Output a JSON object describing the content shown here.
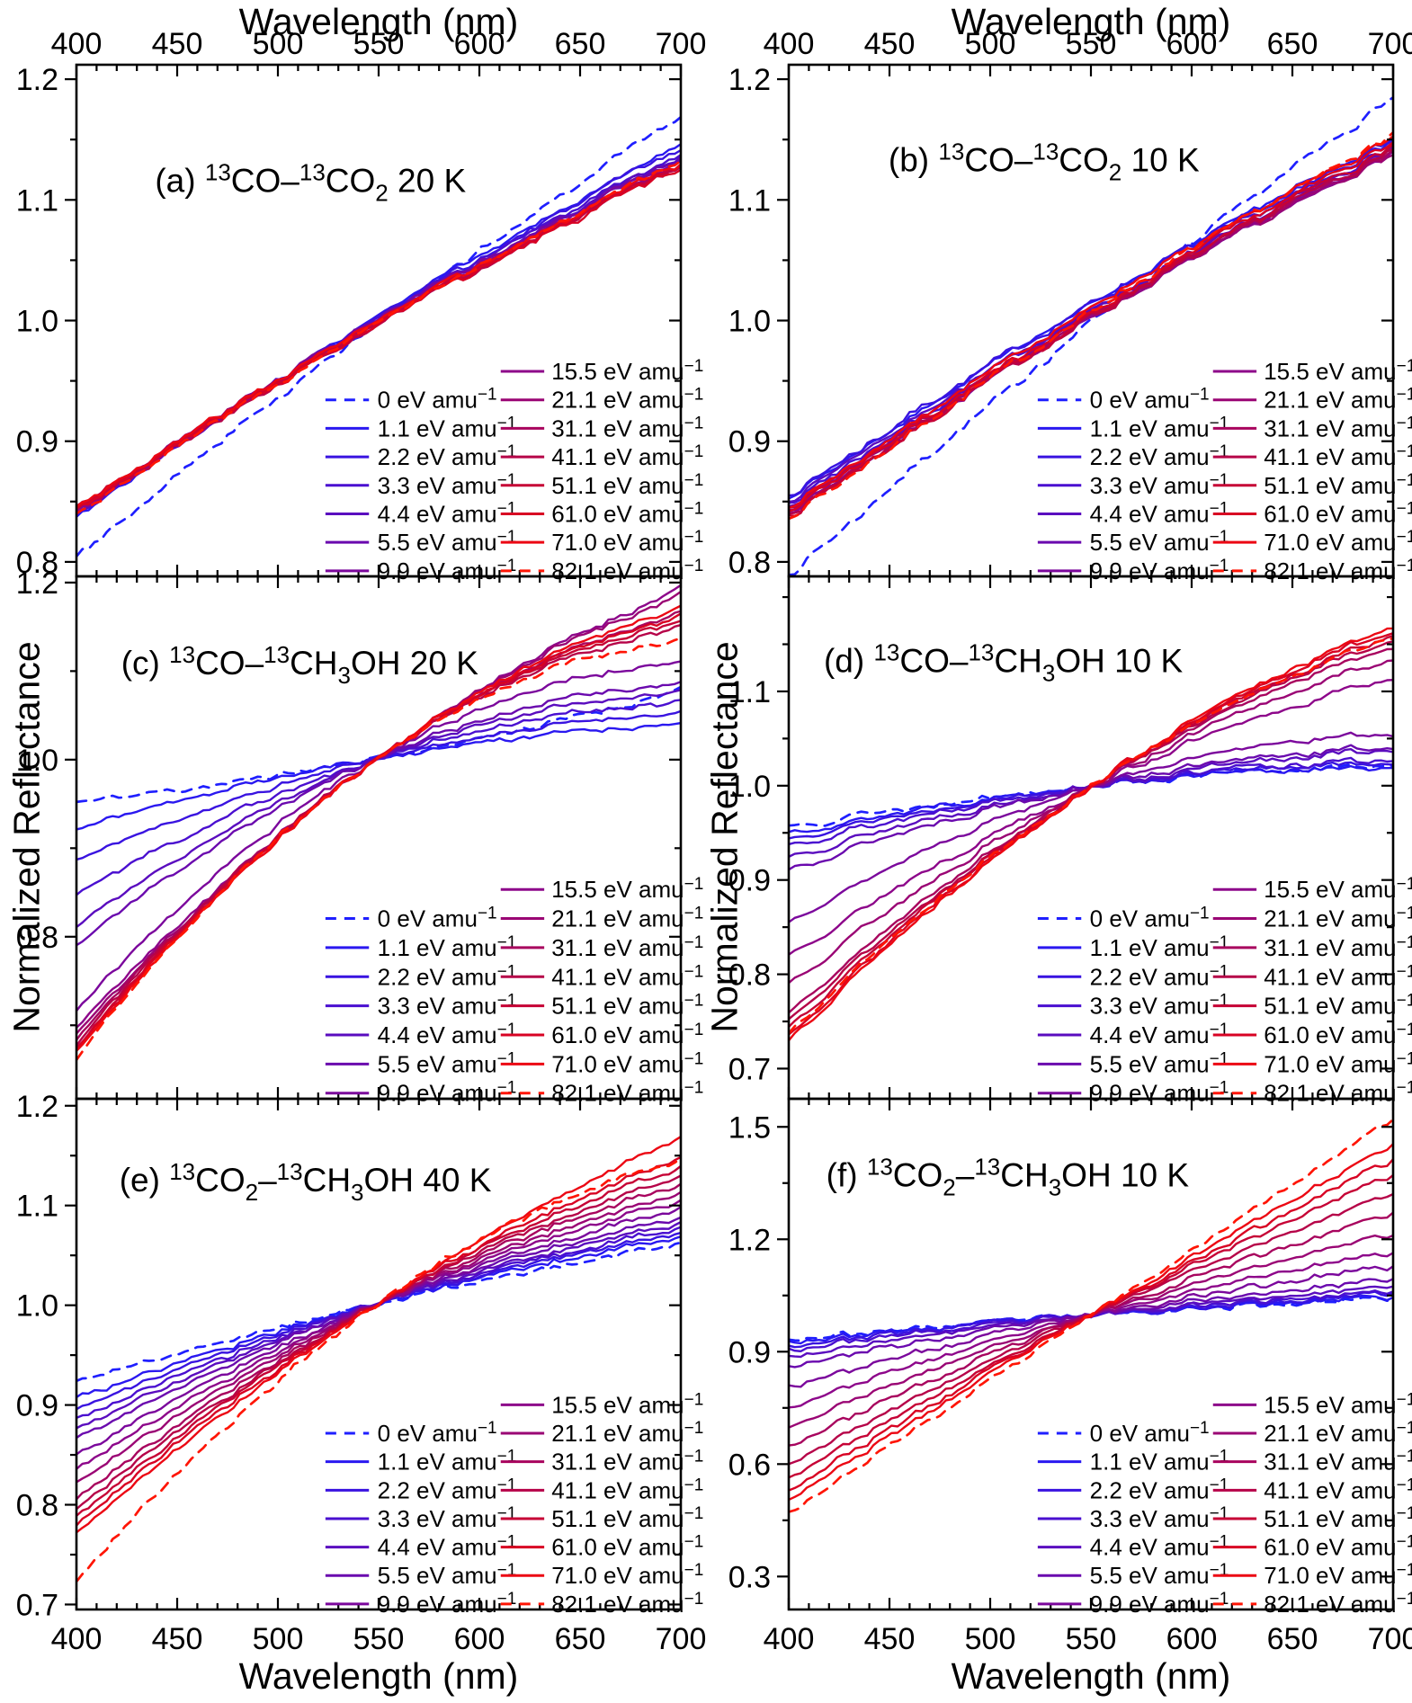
{
  "figure": {
    "x_axis_title": "Wavelength (nm)",
    "y_axis_title": "Normalized Reflectance"
  },
  "legend": {
    "unit": "eV amu",
    "exponent": "−1",
    "doses": [
      "0",
      "1.1",
      "2.2",
      "3.3",
      "4.4",
      "5.5",
      "9.9",
      "15.5",
      "21.1",
      "31.1",
      "41.1",
      "51.1",
      "61.0",
      "71.0",
      "82.1"
    ]
  },
  "chart_data": {
    "type": "line",
    "x_label": "Wavelength (nm)",
    "y_label": "Normalized Reflectance",
    "x_range": [
      400,
      700
    ],
    "x_major_ticks": [
      400,
      450,
      500,
      550,
      600,
      650,
      700
    ],
    "x_minor_step": 10,
    "series_names": [
      "0 eV amu⁻¹",
      "1.1 eV amu⁻¹",
      "2.2 eV amu⁻¹",
      "3.3 eV amu⁻¹",
      "4.4 eV amu⁻¹",
      "5.5 eV amu⁻¹",
      "9.9 eV amu⁻¹",
      "15.5 eV amu⁻¹",
      "21.1 eV amu⁻¹",
      "31.1 eV amu⁻¹",
      "41.1 eV amu⁻¹",
      "51.1 eV amu⁻¹",
      "61.0 eV amu⁻¹",
      "71.0 eV amu⁻¹",
      "82.1 eV amu⁻¹"
    ],
    "series_colors": [
      "#1f1fff",
      "#2a18f0",
      "#3913e0",
      "#4a0fd0",
      "#5a0cbf",
      "#6a09ae",
      "#7b079c",
      "#8d068a",
      "#9a0574",
      "#a8045e",
      "#b60348",
      "#c60235",
      "#d80223",
      "#ec0713",
      "#ff1505"
    ],
    "series_dashed": [
      true,
      false,
      false,
      false,
      false,
      false,
      false,
      false,
      false,
      false,
      false,
      false,
      false,
      false,
      true
    ],
    "panels": [
      {
        "key": "a",
        "title": "(a) ¹³CO–¹³CO₂ 20 K",
        "title_segments": [
          [
            "n",
            "(a) "
          ],
          [
            "sup",
            "13"
          ],
          [
            "n",
            "CO–"
          ],
          [
            "sup",
            "13"
          ],
          [
            "n",
            "CO"
          ],
          [
            "sub",
            "2"
          ],
          [
            "n",
            " 20 K"
          ]
        ],
        "ylim": [
          0.788,
          1.212
        ],
        "y_major_ticks": [
          0.8,
          0.9,
          1.0,
          1.1,
          1.2
        ],
        "y_tick_labels": [
          "0.8",
          "0.9",
          "1.0",
          "1.1",
          "1.2"
        ],
        "y_minor_step": 0.05,
        "pivot_nm": null,
        "pivot_value": null,
        "bow": 0.012,
        "noise": 0.0042,
        "reflectance_at_400nm": [
          0.805,
          0.838,
          0.84,
          0.842,
          0.839,
          0.842,
          0.845,
          0.843,
          0.845,
          0.846,
          0.842,
          0.845,
          0.844,
          0.846,
          0.84
        ],
        "reflectance_at_700nm": [
          1.168,
          1.145,
          1.142,
          1.138,
          1.136,
          1.134,
          1.133,
          1.13,
          1.129,
          1.128,
          1.127,
          1.128,
          1.126,
          1.13,
          1.132
        ]
      },
      {
        "key": "b",
        "title": "(b) ¹³CO–¹³CO₂ 10 K",
        "title_segments": [
          [
            "n",
            "(b) "
          ],
          [
            "sup",
            "13"
          ],
          [
            "n",
            "CO–"
          ],
          [
            "sup",
            "13"
          ],
          [
            "n",
            "CO"
          ],
          [
            "sub",
            "2"
          ],
          [
            "n",
            " 10 K"
          ]
        ],
        "ylim": [
          0.788,
          1.212
        ],
        "y_major_ticks": [
          0.8,
          0.9,
          1.0,
          1.1,
          1.2
        ],
        "y_tick_labels": [
          "0.8",
          "0.9",
          "1.0",
          "1.1",
          "1.2"
        ],
        "y_minor_step": 0.05,
        "pivot_nm": null,
        "pivot_value": null,
        "bow": 0.012,
        "noise": 0.0045,
        "reflectance_at_400nm": [
          0.788,
          0.852,
          0.855,
          0.848,
          0.85,
          0.845,
          0.842,
          0.84,
          0.843,
          0.845,
          0.84,
          0.838,
          0.842,
          0.845,
          0.835
        ],
        "reflectance_at_700nm": [
          1.185,
          1.152,
          1.148,
          1.145,
          1.143,
          1.142,
          1.14,
          1.139,
          1.138,
          1.14,
          1.142,
          1.145,
          1.148,
          1.152,
          1.155
        ]
      },
      {
        "key": "c",
        "title": "(c) ¹³CO–¹³CH₃OH 20 K",
        "title_segments": [
          [
            "n",
            "(c) "
          ],
          [
            "sup",
            "13"
          ],
          [
            "n",
            "CO–"
          ],
          [
            "sup",
            "13"
          ],
          [
            "n",
            "CH"
          ],
          [
            "sub",
            "3"
          ],
          [
            "n",
            "OH 20 K"
          ]
        ],
        "ylim": [
          0.617,
          1.207
        ],
        "y_major_ticks": [
          0.8,
          1.0,
          1.2
        ],
        "y_tick_labels": [
          "0.8",
          "1.0",
          "1.2"
        ],
        "y_minor_step": 0.1,
        "pivot_nm": 552,
        "pivot_value": 1.002,
        "bow": 0,
        "noise": 0.0045,
        "reflectance_at_400nm": [
          0.952,
          0.922,
          0.886,
          0.848,
          0.812,
          0.79,
          0.716,
          0.698,
          0.69,
          0.684,
          0.678,
          0.674,
          0.672,
          0.67,
          0.662
        ],
        "reflectance_at_700nm": [
          1.078,
          1.04,
          1.052,
          1.064,
          1.075,
          1.085,
          1.108,
          1.192,
          1.186,
          1.165,
          1.148,
          1.155,
          1.16,
          1.17,
          1.132
        ]
      },
      {
        "key": "d",
        "title": "(d) ¹³CO–¹³CH₃OH 10 K",
        "title_segments": [
          [
            "n",
            "(d) "
          ],
          [
            "sup",
            "13"
          ],
          [
            "n",
            "CO–"
          ],
          [
            "sup",
            "13"
          ],
          [
            "n",
            "CH"
          ],
          [
            "sub",
            "3"
          ],
          [
            "n",
            "OH 10 K"
          ]
        ],
        "ylim": [
          0.668,
          1.222
        ],
        "y_major_ticks": [
          0.7,
          0.8,
          0.9,
          1.0,
          1.1
        ],
        "y_tick_labels": [
          "0.7",
          "0.8",
          "0.9",
          "1.0",
          "1.1"
        ],
        "y_minor_step": 0.05,
        "pivot_nm": 555,
        "pivot_value": 1.0,
        "bow": 0,
        "noise": 0.0045,
        "reflectance_at_400nm": [
          0.957,
          0.95,
          0.944,
          0.938,
          0.925,
          0.912,
          0.855,
          0.82,
          0.79,
          0.76,
          0.752,
          0.745,
          0.735,
          0.73,
          0.738
        ],
        "reflectance_at_700nm": [
          1.022,
          1.02,
          1.024,
          1.028,
          1.038,
          1.042,
          1.055,
          1.115,
          1.135,
          1.148,
          1.155,
          1.16,
          1.165,
          1.17,
          1.158
        ]
      },
      {
        "key": "e",
        "title": "(e) ¹³CO₂–¹³CH₃OH 40 K",
        "title_segments": [
          [
            "n",
            "(e) "
          ],
          [
            "sup",
            "13"
          ],
          [
            "n",
            "CO"
          ],
          [
            "sub",
            "2"
          ],
          [
            "n",
            "–"
          ],
          [
            "sup",
            "13"
          ],
          [
            "n",
            "CH"
          ],
          [
            "sub",
            "3"
          ],
          [
            "n",
            "OH 40 K"
          ]
        ],
        "ylim": [
          0.695,
          1.207
        ],
        "y_major_ticks": [
          0.7,
          0.8,
          0.9,
          1.0,
          1.1,
          1.2
        ],
        "y_tick_labels": [
          "0.7",
          "0.8",
          "0.9",
          "1.0",
          "1.1",
          "1.2"
        ],
        "y_minor_step": 0.05,
        "pivot_nm": 550,
        "pivot_value": 1.002,
        "bow": 0,
        "noise": 0.0042,
        "reflectance_at_400nm": [
          0.924,
          0.908,
          0.896,
          0.886,
          0.876,
          0.866,
          0.85,
          0.836,
          0.822,
          0.806,
          0.796,
          0.788,
          0.78,
          0.772,
          0.724
        ],
        "reflectance_at_700nm": [
          1.062,
          1.068,
          1.072,
          1.076,
          1.082,
          1.088,
          1.096,
          1.104,
          1.112,
          1.12,
          1.128,
          1.138,
          1.148,
          1.168,
          1.145
        ]
      },
      {
        "key": "f",
        "title": "(f) ¹³CO₂–¹³CH₃OH 10 K",
        "title_segments": [
          [
            "n",
            "(f) "
          ],
          [
            "sup",
            "13"
          ],
          [
            "n",
            "CO"
          ],
          [
            "sub",
            "2"
          ],
          [
            "n",
            "–"
          ],
          [
            "sup",
            "13"
          ],
          [
            "n",
            "CH"
          ],
          [
            "sub",
            "3"
          ],
          [
            "n",
            "OH 10 K"
          ]
        ],
        "ylim": [
          0.212,
          1.575
        ],
        "y_major_ticks": [
          0.3,
          0.6,
          0.9,
          1.2,
          1.5
        ],
        "y_tick_labels": [
          "0.3",
          "0.6",
          "0.9",
          "1.2",
          "1.5"
        ],
        "y_minor_step": 0.15,
        "pivot_nm": 557,
        "pivot_value": 0.998,
        "bow": 0,
        "noise": 0.01,
        "reflectance_at_400nm": [
          0.932,
          0.926,
          0.918,
          0.906,
          0.888,
          0.862,
          0.808,
          0.752,
          0.7,
          0.648,
          0.6,
          0.566,
          0.532,
          0.506,
          0.472
        ],
        "reflectance_at_700nm": [
          1.042,
          1.046,
          1.052,
          1.06,
          1.072,
          1.09,
          1.124,
          1.164,
          1.212,
          1.268,
          1.322,
          1.372,
          1.412,
          1.452,
          1.522
        ]
      }
    ]
  }
}
